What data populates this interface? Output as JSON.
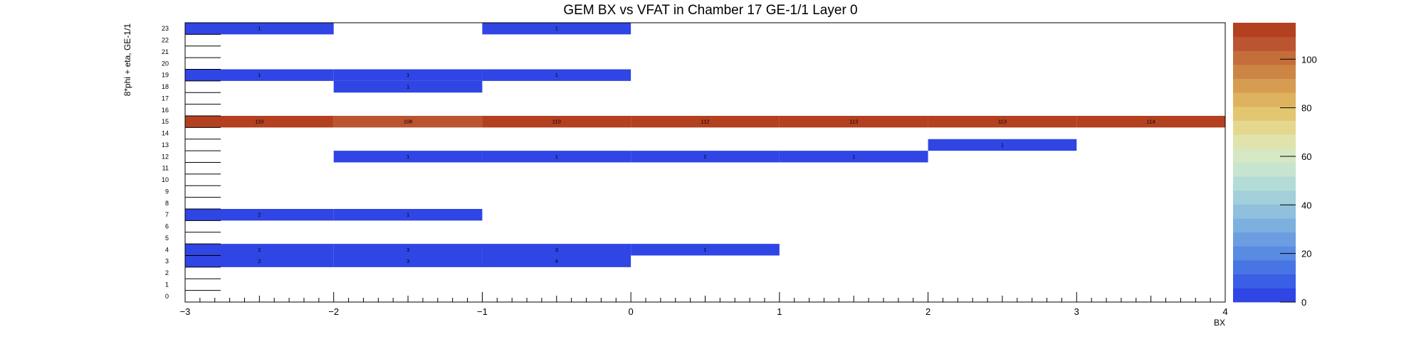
{
  "chart_data": {
    "type": "heatmap",
    "title": "GEM BX vs VFAT in Chamber 17 GE-1/1 Layer 0",
    "xlabel": "BX",
    "ylabel": "8*phi + eta, GE-1/1",
    "xlim": [
      -3,
      4
    ],
    "ylim": [
      0,
      24
    ],
    "x_ticks": [
      "−3",
      "−2",
      "−1",
      "0",
      "1",
      "2",
      "3",
      "4"
    ],
    "y_ticks": [
      "0",
      "1",
      "2",
      "3",
      "4",
      "5",
      "6",
      "7",
      "8",
      "9",
      "10",
      "11",
      "12",
      "13",
      "14",
      "15",
      "16",
      "17",
      "18",
      "19",
      "20",
      "21",
      "22",
      "23"
    ],
    "z_range": [
      0,
      115
    ],
    "z_ticks": [
      0,
      20,
      40,
      60,
      80,
      100
    ],
    "palette": [
      "#2f45e4",
      "#3a5ee6",
      "#4775e4",
      "#5a8be2",
      "#6b9de0",
      "#7eb0df",
      "#90c0dd",
      "#a2cfda",
      "#b4dcd6",
      "#c7e4d0",
      "#d6e7c3",
      "#e0e3ac",
      "#e4d88f",
      "#e2c670",
      "#deb25e",
      "#d69c51",
      "#cc8545",
      "#c46e3b",
      "#bb5430",
      "#b3401f"
    ],
    "cells": [
      {
        "bx": -3,
        "row": 23,
        "value": 1
      },
      {
        "bx": -1,
        "row": 23,
        "value": 1
      },
      {
        "bx": -3,
        "row": 19,
        "value": 1
      },
      {
        "bx": -2,
        "row": 19,
        "value": 1
      },
      {
        "bx": -1,
        "row": 19,
        "value": 1
      },
      {
        "bx": -2,
        "row": 18,
        "value": 1
      },
      {
        "bx": -3,
        "row": 15,
        "value": 110
      },
      {
        "bx": -2,
        "row": 15,
        "value": 108
      },
      {
        "bx": -1,
        "row": 15,
        "value": 110
      },
      {
        "bx": 0,
        "row": 15,
        "value": 112
      },
      {
        "bx": 1,
        "row": 15,
        "value": 113
      },
      {
        "bx": 2,
        "row": 15,
        "value": 113
      },
      {
        "bx": 3,
        "row": 15,
        "value": 114
      },
      {
        "bx": 2,
        "row": 13,
        "value": 1
      },
      {
        "bx": -2,
        "row": 12,
        "value": 1
      },
      {
        "bx": -1,
        "row": 12,
        "value": 1
      },
      {
        "bx": 0,
        "row": 12,
        "value": 2
      },
      {
        "bx": 1,
        "row": 12,
        "value": 1
      },
      {
        "bx": -3,
        "row": 7,
        "value": 2
      },
      {
        "bx": -2,
        "row": 7,
        "value": 1
      },
      {
        "bx": -3,
        "row": 4,
        "value": 2
      },
      {
        "bx": -2,
        "row": 4,
        "value": 3
      },
      {
        "bx": -1,
        "row": 4,
        "value": 3
      },
      {
        "bx": 0,
        "row": 4,
        "value": 1
      },
      {
        "bx": -3,
        "row": 3,
        "value": 2
      },
      {
        "bx": -2,
        "row": 3,
        "value": 3
      },
      {
        "bx": -1,
        "row": 3,
        "value": 4
      }
    ]
  }
}
